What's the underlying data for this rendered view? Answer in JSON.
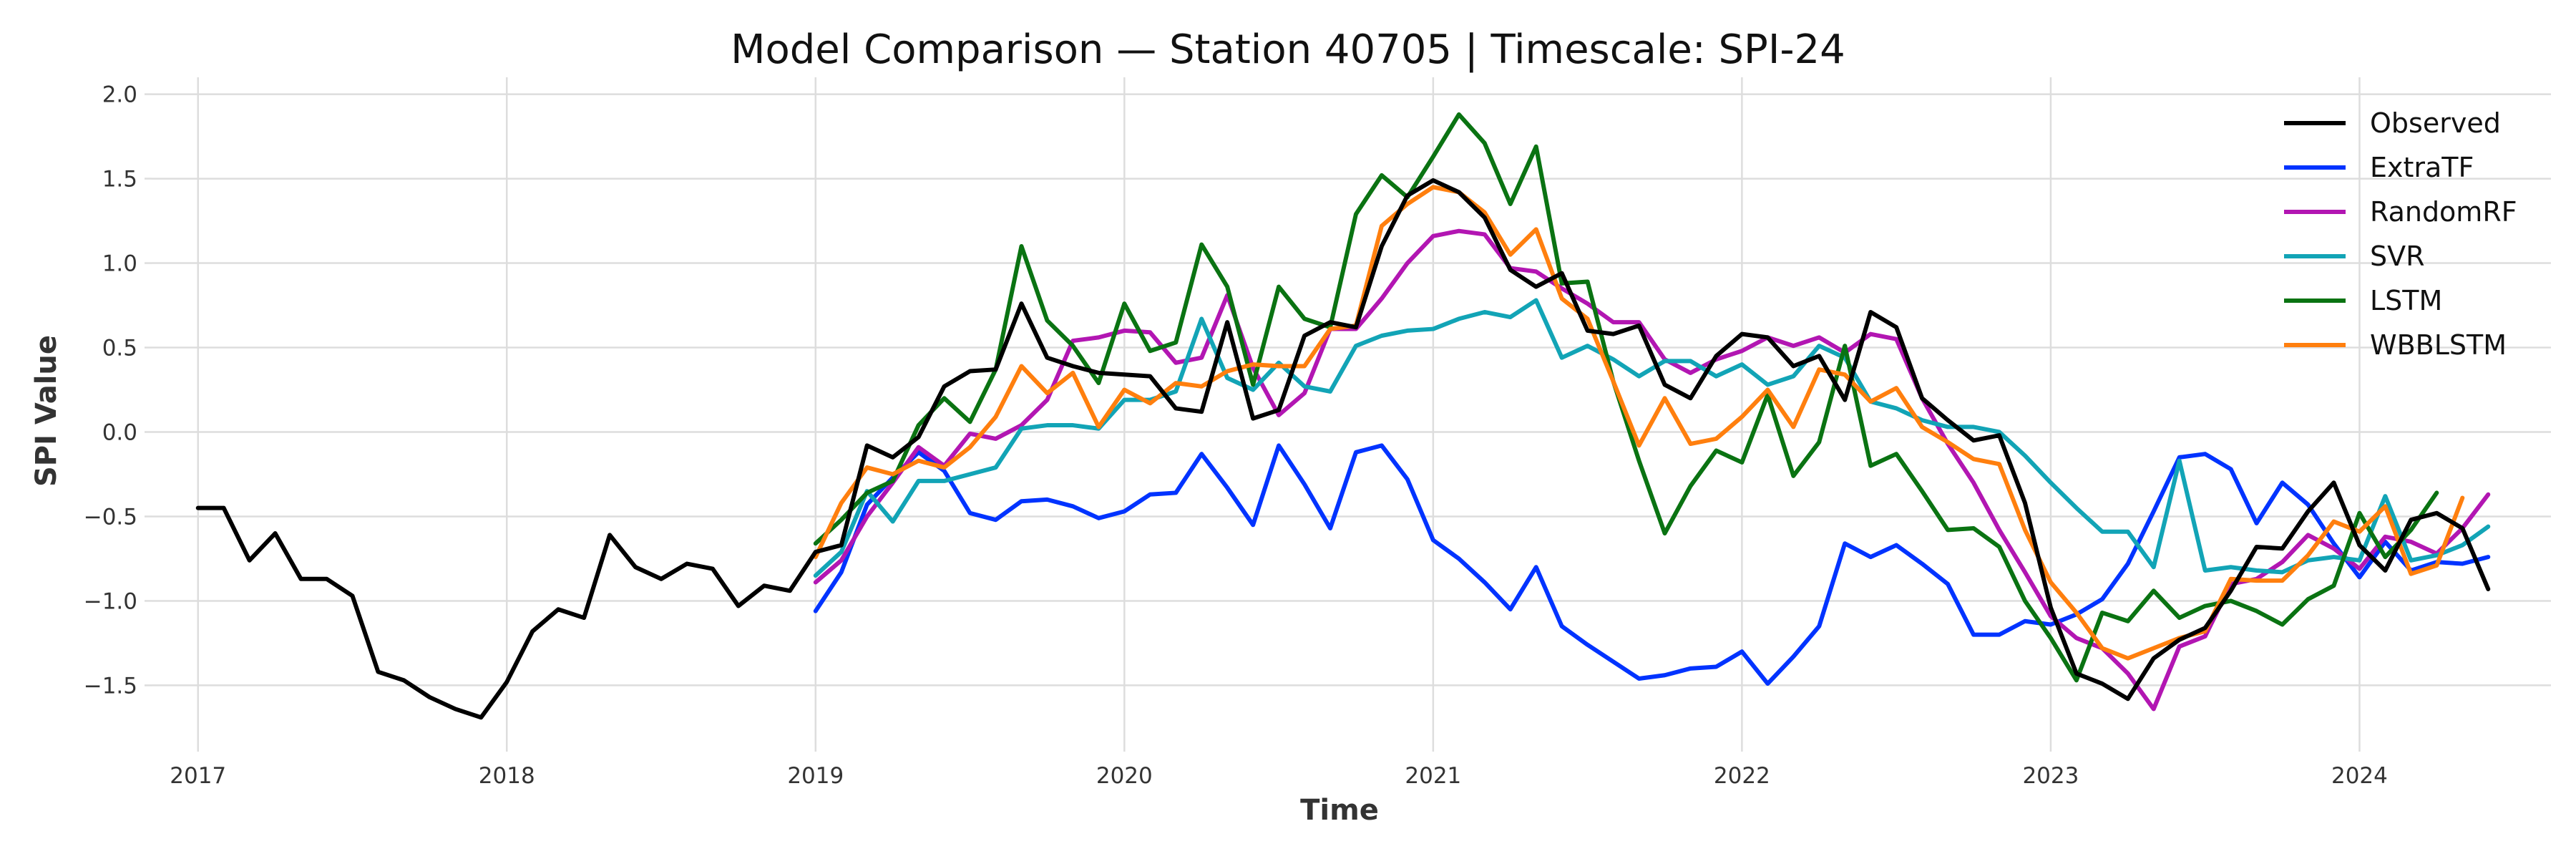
{
  "chart_data": {
    "type": "line",
    "title": "Model Comparison — Station 40705 | Timescale: SPI-24",
    "xlabel": "Time",
    "ylabel": "SPI Value",
    "x_start": "2017-01",
    "x_frequency": "monthly",
    "xlim": [
      2016.85,
      2024.62
    ],
    "ylim": [
      -1.85,
      2.1
    ],
    "x_ticks": [
      {
        "value": 2017,
        "label": "2017"
      },
      {
        "value": 2018,
        "label": "2018"
      },
      {
        "value": 2019,
        "label": "2019"
      },
      {
        "value": 2020,
        "label": "2020"
      },
      {
        "value": 2021,
        "label": "2021"
      },
      {
        "value": 2022,
        "label": "2022"
      },
      {
        "value": 2023,
        "label": "2023"
      },
      {
        "value": 2024,
        "label": "2024"
      }
    ],
    "y_ticks": [
      {
        "value": 2.0,
        "label": "2.0"
      },
      {
        "value": 1.5,
        "label": "1.5"
      },
      {
        "value": 1.0,
        "label": "1.0"
      },
      {
        "value": 0.5,
        "label": "0.5"
      },
      {
        "value": 0.0,
        "label": "0.0"
      },
      {
        "value": -0.5,
        "label": "−0.5"
      },
      {
        "value": -1.0,
        "label": "−1.0"
      },
      {
        "value": -1.5,
        "label": "−1.5"
      }
    ],
    "grid": true,
    "legend_position": "top-right",
    "series": [
      {
        "name": "Observed",
        "color": "#000000",
        "start": "2017-01",
        "values": [
          -0.45,
          -0.45,
          -0.76,
          -0.6,
          -0.87,
          -0.87,
          -0.97,
          -1.42,
          -1.47,
          -1.57,
          -1.64,
          -1.69,
          -1.48,
          -1.18,
          -1.05,
          -1.1,
          -0.61,
          -0.8,
          -0.87,
          -0.78,
          -0.81,
          -1.03,
          -0.91,
          -0.94,
          -0.71,
          -0.67,
          -0.08,
          -0.15,
          -0.03,
          0.27,
          0.36,
          0.37,
          0.76,
          0.44,
          0.39,
          0.35,
          0.34,
          0.33,
          0.14,
          0.12,
          0.65,
          0.08,
          0.13,
          0.57,
          0.65,
          0.62,
          1.1,
          1.4,
          1.49,
          1.42,
          1.27,
          0.96,
          0.86,
          0.94,
          0.6,
          0.58,
          0.63,
          0.28,
          0.2,
          0.45,
          0.58,
          0.56,
          0.39,
          0.45,
          0.19,
          0.71,
          0.62,
          0.2,
          0.07,
          -0.05,
          -0.02,
          -0.42,
          -1.04,
          -1.43,
          -1.49,
          -1.58,
          -1.34,
          -1.23,
          -1.16,
          -0.94,
          -0.68,
          -0.69,
          -0.47,
          -0.3,
          -0.67,
          -0.82,
          -0.52,
          -0.48,
          -0.57,
          -0.93
        ]
      },
      {
        "name": "ExtraTF",
        "color": "#0033ff",
        "start": "2019-01",
        "values": [
          -1.06,
          -0.83,
          -0.43,
          -0.27,
          -0.12,
          -0.23,
          -0.48,
          -0.52,
          -0.41,
          -0.4,
          -0.44,
          -0.51,
          -0.47,
          -0.37,
          -0.36,
          -0.13,
          -0.33,
          -0.55,
          -0.08,
          -0.31,
          -0.57,
          -0.12,
          -0.08,
          -0.28,
          -0.64,
          -0.75,
          -0.89,
          -1.05,
          -0.8,
          -1.15,
          -1.26,
          -1.36,
          -1.46,
          -1.44,
          -1.4,
          -1.39,
          -1.3,
          -1.49,
          -1.33,
          -1.15,
          -0.66,
          -0.74,
          -0.67,
          -0.78,
          -0.9,
          -1.2,
          -1.2,
          -1.12,
          -1.14,
          -1.08,
          -0.99,
          -0.78,
          -0.47,
          -0.15,
          -0.13,
          -0.22,
          -0.54,
          -0.3,
          -0.43,
          -0.66,
          -0.86,
          -0.65,
          -0.82,
          -0.77,
          -0.78,
          -0.74
        ]
      },
      {
        "name": "RandomRF",
        "color": "#b216b2",
        "start": "2019-01",
        "values": [
          -0.89,
          -0.76,
          -0.5,
          -0.3,
          -0.09,
          -0.2,
          -0.01,
          -0.04,
          0.04,
          0.19,
          0.54,
          0.56,
          0.6,
          0.59,
          0.41,
          0.44,
          0.81,
          0.38,
          0.1,
          0.23,
          0.61,
          0.61,
          0.79,
          1.0,
          1.16,
          1.19,
          1.17,
          0.97,
          0.95,
          0.85,
          0.76,
          0.65,
          0.65,
          0.43,
          0.35,
          0.43,
          0.48,
          0.56,
          0.51,
          0.56,
          0.47,
          0.58,
          0.55,
          0.2,
          -0.07,
          -0.3,
          -0.58,
          -0.83,
          -1.09,
          -1.22,
          -1.28,
          -1.43,
          -1.64,
          -1.27,
          -1.21,
          -0.9,
          -0.87,
          -0.77,
          -0.61,
          -0.69,
          -0.81,
          -0.62,
          -0.65,
          -0.72,
          -0.57,
          -0.37
        ]
      },
      {
        "name": "SVR",
        "color": "#12a4b6",
        "start": "2019-01",
        "values": [
          -0.85,
          -0.71,
          -0.35,
          -0.53,
          -0.29,
          -0.29,
          -0.25,
          -0.21,
          0.02,
          0.04,
          0.04,
          0.02,
          0.19,
          0.19,
          0.24,
          0.67,
          0.32,
          0.25,
          0.41,
          0.27,
          0.24,
          0.51,
          0.57,
          0.6,
          0.61,
          0.67,
          0.71,
          0.68,
          0.78,
          0.44,
          0.51,
          0.43,
          0.33,
          0.42,
          0.42,
          0.33,
          0.4,
          0.28,
          0.33,
          0.51,
          0.44,
          0.18,
          0.14,
          0.07,
          0.03,
          0.03,
          0.0,
          -0.14,
          -0.3,
          -0.45,
          -0.59,
          -0.59,
          -0.8,
          -0.17,
          -0.82,
          -0.8,
          -0.82,
          -0.83,
          -0.76,
          -0.74,
          -0.76,
          -0.38,
          -0.76,
          -0.73,
          -0.67,
          -0.56
        ]
      },
      {
        "name": "LSTM",
        "color": "#0a7312",
        "start": "2019-01",
        "values": [
          -0.66,
          -0.52,
          -0.36,
          -0.29,
          0.04,
          0.2,
          0.06,
          0.37,
          1.1,
          0.66,
          0.51,
          0.29,
          0.76,
          0.48,
          0.53,
          1.11,
          0.86,
          0.28,
          0.86,
          0.67,
          0.62,
          1.29,
          1.52,
          1.39,
          1.63,
          1.88,
          1.71,
          1.35,
          1.69,
          0.88,
          0.89,
          0.3,
          -0.17,
          -0.6,
          -0.32,
          -0.11,
          -0.18,
          0.22,
          -0.26,
          -0.06,
          0.51,
          -0.2,
          -0.13,
          -0.35,
          -0.58,
          -0.57,
          -0.68,
          -1.0,
          -1.22,
          -1.47,
          -1.07,
          -1.12,
          -0.94,
          -1.1,
          -1.03,
          -1.0,
          -1.06,
          -1.14,
          -0.99,
          -0.91,
          -0.48,
          -0.74,
          -0.58,
          -0.36
        ]
      },
      {
        "name": "WBBLSTM",
        "color": "#ff7f0e",
        "start": "2019-01",
        "values": [
          -0.74,
          -0.42,
          -0.21,
          -0.25,
          -0.17,
          -0.21,
          -0.09,
          0.09,
          0.39,
          0.23,
          0.35,
          0.03,
          0.25,
          0.17,
          0.29,
          0.27,
          0.36,
          0.4,
          0.39,
          0.39,
          0.61,
          0.63,
          1.22,
          1.35,
          1.45,
          1.42,
          1.3,
          1.05,
          1.2,
          0.79,
          0.67,
          0.3,
          -0.08,
          0.2,
          -0.07,
          -0.04,
          0.09,
          0.25,
          0.03,
          0.37,
          0.34,
          0.18,
          0.26,
          0.03,
          -0.06,
          -0.16,
          -0.19,
          -0.58,
          -0.89,
          -1.07,
          -1.28,
          -1.34,
          -1.28,
          -1.22,
          -1.18,
          -0.87,
          -0.88,
          -0.88,
          -0.73,
          -0.53,
          -0.59,
          -0.44,
          -0.84,
          -0.79,
          -0.39
        ]
      }
    ]
  }
}
